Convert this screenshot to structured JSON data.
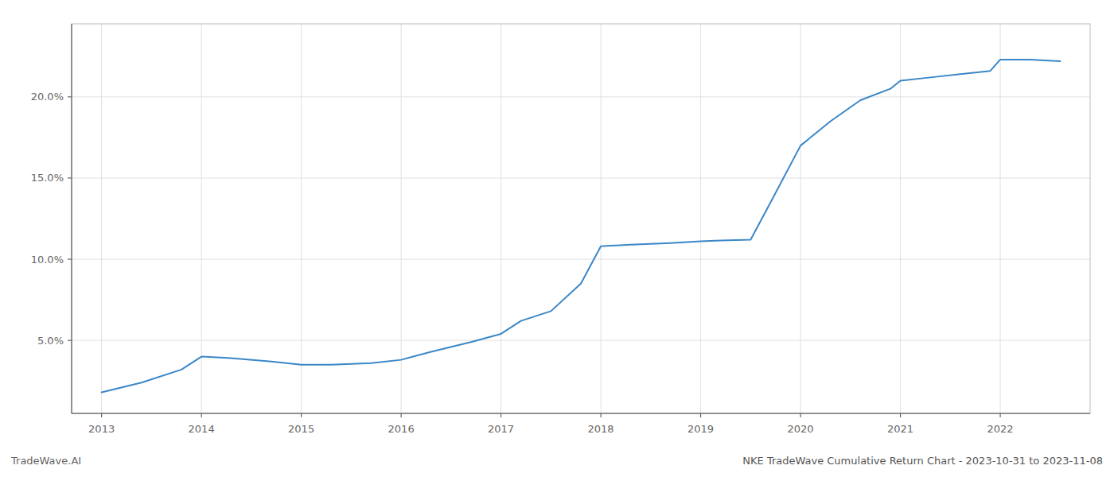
{
  "chart_data": {
    "type": "line",
    "title": "NKE TradeWave Cumulative Return Chart - 2023-10-31 to 2023-11-08",
    "annotations": [
      "TradeWave.AI"
    ],
    "x": [
      2013.0,
      2013.4,
      2013.8,
      2014.0,
      2014.3,
      2014.7,
      2015.0,
      2015.3,
      2015.7,
      2016.0,
      2016.3,
      2016.7,
      2017.0,
      2017.2,
      2017.5,
      2017.8,
      2018.0,
      2018.15,
      2018.3,
      2018.5,
      2018.7,
      2019.0,
      2019.2,
      2019.5,
      2019.7,
      2020.0,
      2020.3,
      2020.6,
      2020.9,
      2021.0,
      2021.3,
      2021.6,
      2021.9,
      2022.0,
      2022.3,
      2022.6
    ],
    "values": [
      1.8,
      2.4,
      3.2,
      4.0,
      3.9,
      3.7,
      3.5,
      3.5,
      3.6,
      3.8,
      4.3,
      4.9,
      5.4,
      6.2,
      6.8,
      8.5,
      10.8,
      10.85,
      10.9,
      10.95,
      11.0,
      11.1,
      11.15,
      11.2,
      13.5,
      17.0,
      18.5,
      19.8,
      20.5,
      21.0,
      21.2,
      21.4,
      21.6,
      22.3,
      22.3,
      22.2
    ],
    "color": "#3a87c8",
    "xlim": [
      2012.7,
      2022.9
    ],
    "ylim": [
      0.5,
      24.5
    ],
    "xticks": [
      2013,
      2014,
      2015,
      2016,
      2017,
      2018,
      2019,
      2020,
      2021,
      2022
    ],
    "yticks": [
      {
        "value": 5.0,
        "label": "5.0%"
      },
      {
        "value": 10.0,
        "label": "10.0%"
      },
      {
        "value": 15.0,
        "label": "15.0%"
      },
      {
        "value": 20.0,
        "label": "20.0%"
      }
    ],
    "grid": true
  }
}
